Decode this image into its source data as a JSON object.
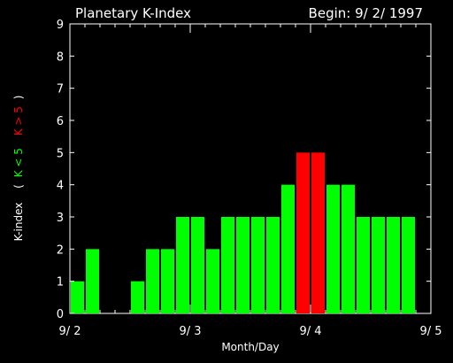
{
  "title": "Planetary K-Index",
  "begin_label": "Begin: 9/ 2/ 1997",
  "xlabel": "Month/Day",
  "ylabel": {
    "prefix": "K-index",
    "open_paren": "(",
    "low": "K < 5",
    "high": "K > 5",
    "close_paren": ")"
  },
  "colors": {
    "background": "#000000",
    "axis": "#ffffff",
    "low_bar": "#00ff00",
    "high_bar": "#ff0000"
  },
  "chart_data": {
    "type": "bar",
    "title": "Planetary K-Index",
    "xlabel": "Month/Day",
    "ylabel": "K-index",
    "ylim": [
      0,
      9
    ],
    "yticks": [
      "0",
      "1",
      "2",
      "3",
      "4",
      "5",
      "6",
      "7",
      "8",
      "9"
    ],
    "x_tick_labels": [
      "9/ 2",
      "9/ 3",
      "9/ 4",
      "9/ 5"
    ],
    "days": 3,
    "intervals_per_day": 8,
    "threshold": 5,
    "values": [
      1,
      2,
      0,
      0,
      1,
      2,
      2,
      3,
      3,
      2,
      3,
      3,
      3,
      3,
      4,
      5,
      5,
      4,
      4,
      3,
      3,
      3,
      3,
      0
    ]
  }
}
